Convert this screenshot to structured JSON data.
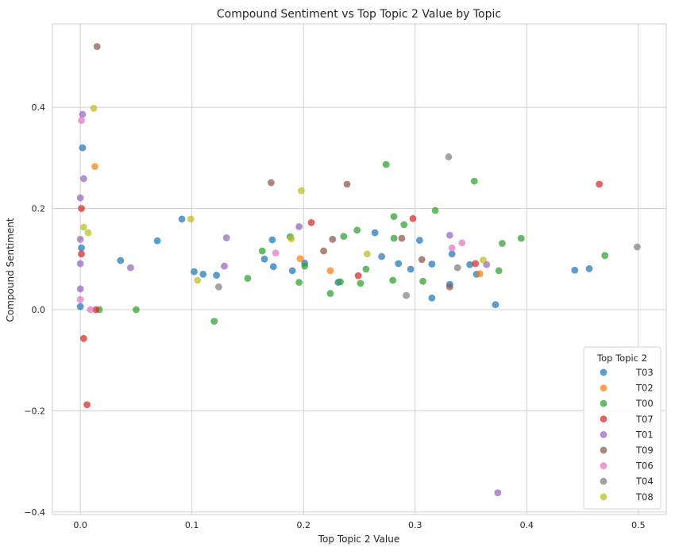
{
  "chart_data": {
    "type": "scatter",
    "title": "Compound Sentiment vs Top Topic 2 Value by Topic",
    "xlabel": "Top Topic 2 Value",
    "ylabel": "Compound Sentiment",
    "xlim": [
      -0.025,
      0.525
    ],
    "ylim": [
      -0.405,
      0.565
    ],
    "xticks": [
      0.0,
      0.1,
      0.2,
      0.3,
      0.4,
      0.5
    ],
    "xtick_labels": [
      "0.0",
      "0.1",
      "0.2",
      "0.3",
      "0.4",
      "0.5"
    ],
    "yticks": [
      -0.4,
      -0.2,
      0.0,
      0.2,
      0.4
    ],
    "ytick_labels": [
      "−0.4",
      "−0.2",
      "0.0",
      "0.2",
      "0.4"
    ],
    "grid": true,
    "legend": {
      "title": "Top Topic 2",
      "placement": "bottom-right"
    },
    "series": [
      {
        "name": "T03",
        "color": "#1f77b4",
        "points": [
          [
            0.002,
            0.32
          ],
          [
            0.001,
            0.122
          ],
          [
            0.0,
            0.006
          ],
          [
            0.036,
            0.097
          ],
          [
            0.069,
            0.136
          ],
          [
            0.091,
            0.179
          ],
          [
            0.102,
            0.075
          ],
          [
            0.11,
            0.07
          ],
          [
            0.122,
            0.068
          ],
          [
            0.165,
            0.1
          ],
          [
            0.172,
            0.138
          ],
          [
            0.173,
            0.085
          ],
          [
            0.19,
            0.077
          ],
          [
            0.201,
            0.092
          ],
          [
            0.231,
            0.054
          ],
          [
            0.264,
            0.152
          ],
          [
            0.27,
            0.105
          ],
          [
            0.285,
            0.091
          ],
          [
            0.296,
            0.08
          ],
          [
            0.304,
            0.137
          ],
          [
            0.315,
            0.09
          ],
          [
            0.315,
            0.023
          ],
          [
            0.331,
            0.05
          ],
          [
            0.333,
            0.11
          ],
          [
            0.349,
            0.089
          ],
          [
            0.355,
            0.07
          ],
          [
            0.372,
            0.01
          ],
          [
            0.443,
            0.078
          ],
          [
            0.456,
            0.081
          ]
        ]
      },
      {
        "name": "T02",
        "color": "#ff7f0e",
        "points": [
          [
            0.013,
            0.283
          ],
          [
            0.197,
            0.101
          ],
          [
            0.224,
            0.077
          ],
          [
            0.358,
            0.071
          ]
        ]
      },
      {
        "name": "T00",
        "color": "#2ca02c",
        "points": [
          [
            0.017,
            0.0
          ],
          [
            0.05,
            0.0
          ],
          [
            0.12,
            -0.023
          ],
          [
            0.15,
            0.062
          ],
          [
            0.163,
            0.116
          ],
          [
            0.188,
            0.144
          ],
          [
            0.196,
            0.054
          ],
          [
            0.201,
            0.086
          ],
          [
            0.224,
            0.032
          ],
          [
            0.233,
            0.055
          ],
          [
            0.236,
            0.145
          ],
          [
            0.248,
            0.157
          ],
          [
            0.251,
            0.052
          ],
          [
            0.256,
            0.08
          ],
          [
            0.274,
            0.287
          ],
          [
            0.28,
            0.058
          ],
          [
            0.281,
            0.141
          ],
          [
            0.281,
            0.184
          ],
          [
            0.29,
            0.168
          ],
          [
            0.307,
            0.056
          ],
          [
            0.318,
            0.196
          ],
          [
            0.353,
            0.254
          ],
          [
            0.375,
            0.077
          ],
          [
            0.378,
            0.131
          ],
          [
            0.395,
            0.141
          ],
          [
            0.47,
            0.107
          ]
        ]
      },
      {
        "name": "T07",
        "color": "#d62728",
        "points": [
          [
            0.001,
            0.2
          ],
          [
            0.001,
            0.11
          ],
          [
            0.003,
            -0.057
          ],
          [
            0.006,
            -0.188
          ],
          [
            0.014,
            0.0
          ],
          [
            0.207,
            0.172
          ],
          [
            0.249,
            0.067
          ],
          [
            0.298,
            0.18
          ],
          [
            0.354,
            0.091
          ],
          [
            0.465,
            0.248
          ]
        ]
      },
      {
        "name": "T01",
        "color": "#9467bd",
        "points": [
          [
            0.002,
            0.386
          ],
          [
            0.003,
            0.259
          ],
          [
            0.0,
            0.221
          ],
          [
            0.0,
            0.139
          ],
          [
            0.0,
            0.091
          ],
          [
            0.0,
            0.041
          ],
          [
            0.045,
            0.083
          ],
          [
            0.129,
            0.086
          ],
          [
            0.131,
            0.142
          ],
          [
            0.196,
            0.164
          ],
          [
            0.331,
            0.147
          ],
          [
            0.364,
            0.089
          ],
          [
            0.374,
            -0.362
          ]
        ]
      },
      {
        "name": "T09",
        "color": "#8c564b",
        "points": [
          [
            0.015,
            0.52
          ],
          [
            0.171,
            0.251
          ],
          [
            0.218,
            0.116
          ],
          [
            0.226,
            0.139
          ],
          [
            0.239,
            0.248
          ],
          [
            0.288,
            0.141
          ],
          [
            0.306,
            0.099
          ],
          [
            0.331,
            0.045
          ]
        ]
      },
      {
        "name": "T06",
        "color": "#e377c2",
        "points": [
          [
            0.001,
            0.374
          ],
          [
            0.0,
            0.02
          ],
          [
            0.009,
            0.0
          ],
          [
            0.175,
            0.112
          ],
          [
            0.333,
            0.122
          ],
          [
            0.342,
            0.132
          ]
        ]
      },
      {
        "name": "T04",
        "color": "#7f7f7f",
        "points": [
          [
            0.124,
            0.045
          ],
          [
            0.292,
            0.028
          ],
          [
            0.33,
            0.302
          ],
          [
            0.338,
            0.083
          ],
          [
            0.499,
            0.124
          ]
        ]
      },
      {
        "name": "T08",
        "color": "#bcbd22",
        "points": [
          [
            0.012,
            0.398
          ],
          [
            0.003,
            0.163
          ],
          [
            0.007,
            0.152
          ],
          [
            0.099,
            0.179
          ],
          [
            0.105,
            0.058
          ],
          [
            0.189,
            0.14
          ],
          [
            0.198,
            0.235
          ],
          [
            0.257,
            0.11
          ],
          [
            0.361,
            0.098
          ]
        ]
      }
    ]
  }
}
